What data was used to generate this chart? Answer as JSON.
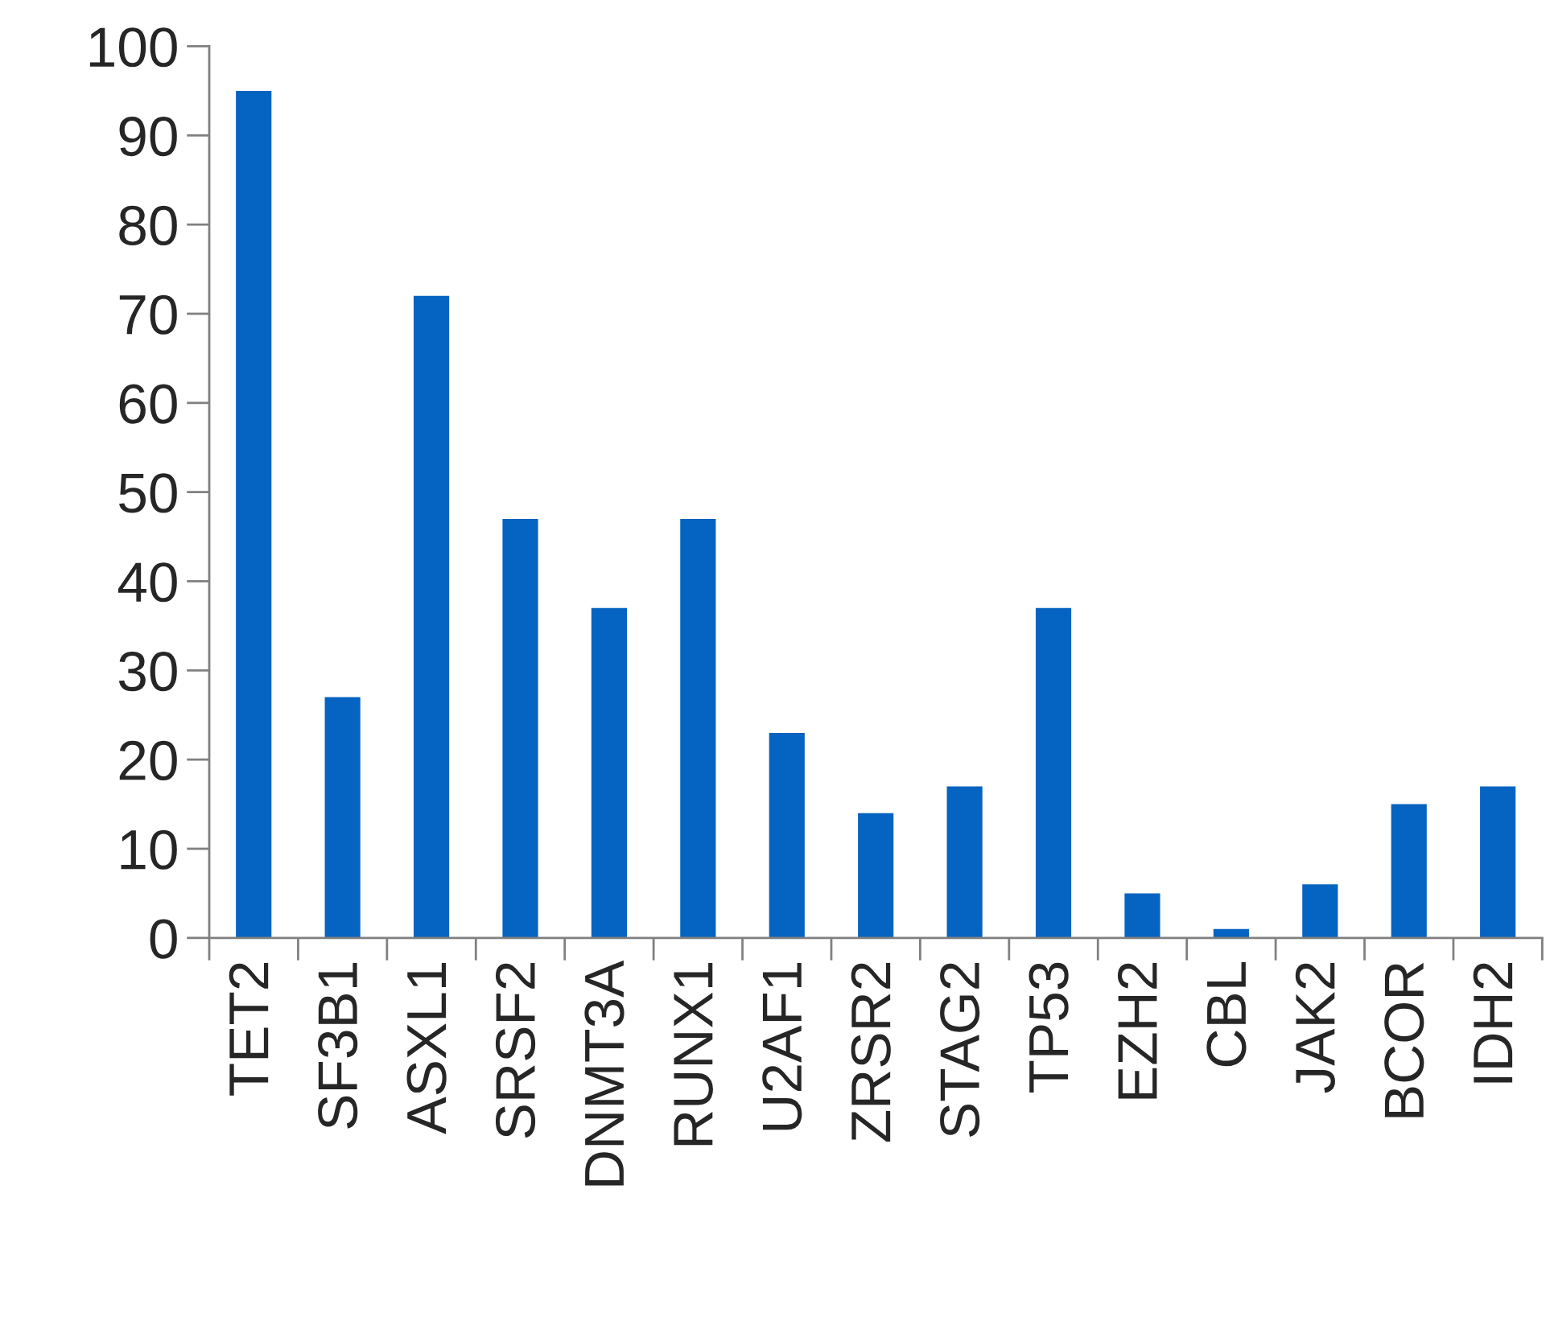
{
  "chart_data": {
    "type": "bar",
    "categories": [
      "TET2",
      "SF3B1",
      "ASXL1",
      "SRSF2",
      "DNMT3A",
      "RUNX1",
      "U2AF1",
      "ZRSR2",
      "STAG2",
      "TP53",
      "EZH2",
      "CBL",
      "JAK2",
      "BCOR",
      "IDH2"
    ],
    "values": [
      95,
      27,
      72,
      47,
      37,
      47,
      23,
      14,
      17,
      37,
      5,
      1,
      6,
      15,
      17
    ],
    "color": "#0563c1",
    "ylim": [
      0,
      100
    ],
    "yticks": [
      0,
      10,
      20,
      30,
      40,
      50,
      60,
      70,
      80,
      90,
      100
    ],
    "grid": false,
    "legend": false
  }
}
